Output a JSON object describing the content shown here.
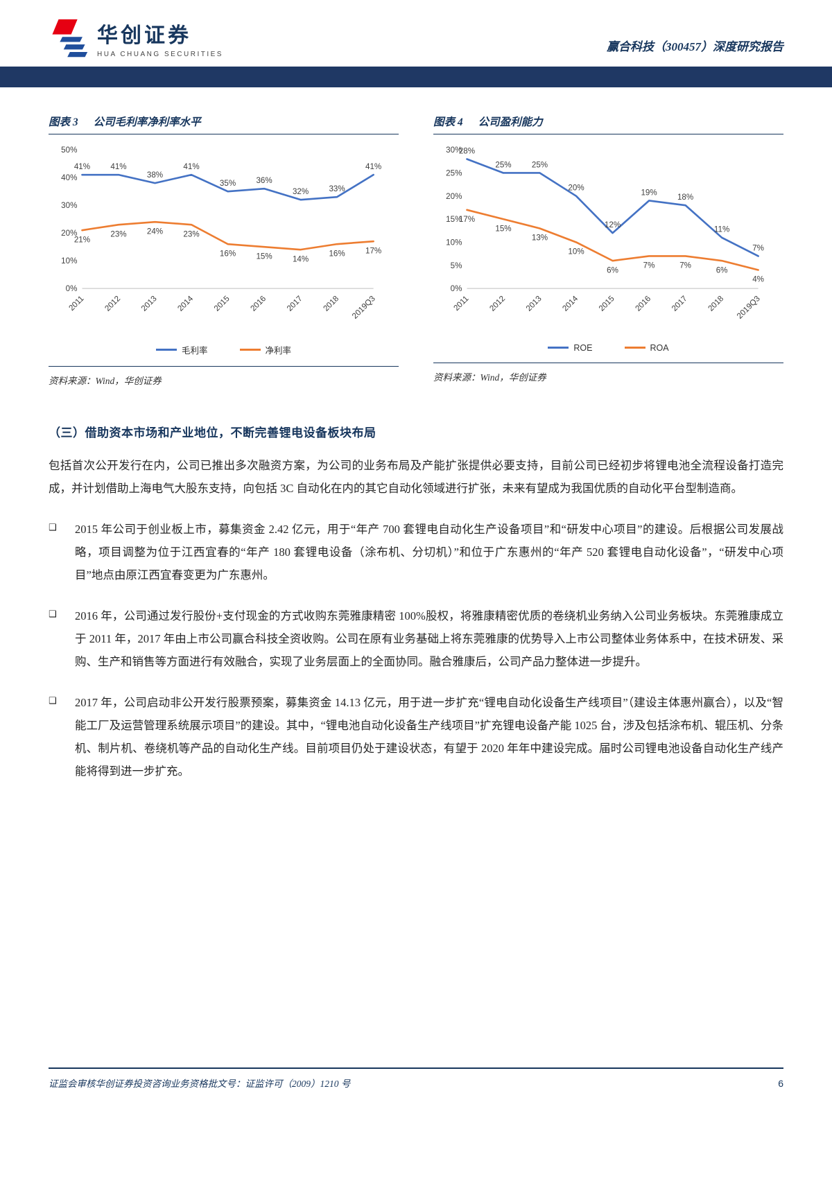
{
  "header": {
    "logo_cn": "华创证券",
    "logo_en": "HUA CHUANG SECURITIES",
    "report_title": "赢合科技（300457）深度研究报告"
  },
  "chart_data": [
    {
      "type": "line",
      "fig_label": "图表 3",
      "title": "公司毛利率净利率水平",
      "categories": [
        "2011",
        "2012",
        "2013",
        "2014",
        "2015",
        "2016",
        "2017",
        "2018",
        "2019Q3"
      ],
      "ylim": [
        0,
        50
      ],
      "ystep": 10,
      "grid": false,
      "legend_position": "bottom",
      "series": [
        {
          "name": "毛利率",
          "color": "#4472C4",
          "label_side": "above",
          "values": [
            41,
            41,
            38,
            41,
            35,
            36,
            32,
            33,
            41
          ]
        },
        {
          "name": "净利率",
          "color": "#ED7D31",
          "label_side": "below",
          "values": [
            21,
            23,
            24,
            23,
            16,
            15,
            14,
            16,
            17
          ]
        }
      ],
      "source": "资料来源：Wind，华创证券"
    },
    {
      "type": "line",
      "fig_label": "图表 4",
      "title": "公司盈利能力",
      "categories": [
        "2011",
        "2012",
        "2013",
        "2014",
        "2015",
        "2016",
        "2017",
        "2018",
        "2019Q3"
      ],
      "ylim": [
        0,
        30
      ],
      "ystep": 5,
      "grid": false,
      "legend_position": "bottom",
      "series": [
        {
          "name": "ROE",
          "color": "#4472C4",
          "label_side": "above",
          "values": [
            28,
            25,
            25,
            20,
            12,
            19,
            18,
            11,
            7
          ]
        },
        {
          "name": "ROA",
          "color": "#ED7D31",
          "label_side": "below",
          "values": [
            17,
            15,
            13,
            10,
            6,
            7,
            7,
            6,
            4
          ]
        }
      ],
      "source": "资料来源：Wind，华创证券"
    }
  ],
  "section": {
    "heading": "（三）借助资本市场和产业地位，不断完善锂电设备板块布局",
    "intro": "包括首次公开发行在内，公司已推出多次融资方案，为公司的业务布局及产能扩张提供必要支持，目前公司已经初步将锂电池全流程设备打造完成，并计划借助上海电气大股东支持，向包括 3C 自动化在内的其它自动化领域进行扩张，未来有望成为我国优质的自动化平台型制造商。",
    "bullet_glyph": "❑",
    "bullets": [
      "2015 年公司于创业板上市，募集资金 2.42 亿元，用于“年产 700 套锂电自动化生产设备项目”和“研发中心项目”的建设。后根据公司发展战略，项目调整为位于江西宜春的“年产 180 套锂电设备（涂布机、分切机）”和位于广东惠州的“年产 520 套锂电自动化设备”，“研发中心项目”地点由原江西宜春变更为广东惠州。",
      "2016 年，公司通过发行股份+支付现金的方式收购东莞雅康精密 100%股权，将雅康精密优质的卷绕机业务纳入公司业务板块。东莞雅康成立于 2011 年，2017 年由上市公司赢合科技全资收购。公司在原有业务基础上将东莞雅康的优势导入上市公司整体业务体系中，在技术研发、采购、生产和销售等方面进行有效融合，实现了业务层面上的全面协同。融合雅康后，公司产品力整体进一步提升。",
      "2017 年，公司启动非公开发行股票预案，募集资金 14.13 亿元，用于进一步扩充“锂电自动化设备生产线项目”（建设主体惠州赢合），以及“智能工厂及运营管理系统展示项目”的建设。其中，“锂电池自动化设备生产线项目”扩充锂电设备产能 1025 台，涉及包括涂布机、辊压机、分条机、制片机、卷绕机等产品的自动化生产线。目前项目仍处于建设状态，有望于 2020 年年中建设完成。届时公司锂电池设备自动化生产线产能将得到进一步扩充。"
    ]
  },
  "footer": {
    "left": "证监会审核华创证券投资咨询业务资格批文号：证监许可（2009）1210 号",
    "page": "6"
  },
  "colors": {
    "navy": "#1F3864",
    "title_navy": "#17365d",
    "series_blue": "#4472C4",
    "series_orange": "#ED7D31",
    "logo_red": "#E60012",
    "logo_blue": "#1F4E9C"
  }
}
